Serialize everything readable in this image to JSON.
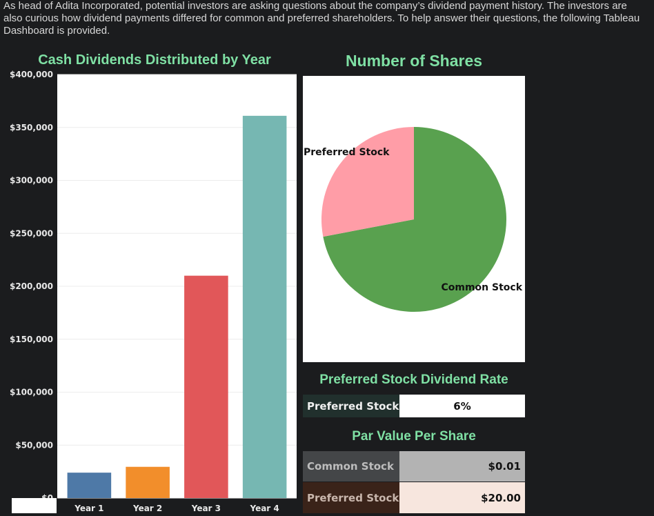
{
  "intro_text": "As head of Adita Incorporated, potential investors are asking questions about the company’s dividend payment history. The investors are also curious how dividend payments differed for common and preferred shareholders. To help answer their questions, the following Tableau Dashboard is provided.",
  "chart_data": [
    {
      "type": "bar",
      "title": "Cash Dividends Distributed by Year",
      "categories": [
        "Year 1",
        "Year 2",
        "Year 3",
        "Year 4"
      ],
      "values": [
        24000,
        29500,
        210000,
        361000
      ],
      "colors": [
        "#4e79a7",
        "#f28e2b",
        "#e15759",
        "#76b7b2"
      ],
      "yticks": [
        0,
        50000,
        100000,
        150000,
        200000,
        250000,
        300000,
        350000,
        400000
      ],
      "ytick_labels": [
        "$0",
        "$50,000",
        "$100,000",
        "$150,000",
        "$200,000",
        "$250,000",
        "$300,000",
        "$350,000",
        "$400,000"
      ],
      "ylim": [
        0,
        400000
      ],
      "xlabel": "",
      "ylabel": ""
    },
    {
      "type": "pie",
      "title": "Number of Shares",
      "labels": [
        "Common Stock",
        "Preferred Stock"
      ],
      "values": [
        72,
        28
      ],
      "colors": [
        "#59a14f",
        "#ff9da7"
      ]
    }
  ],
  "dividend_rate": {
    "title": "Preferred Stock Dividend Rate",
    "label": "Preferred Stock",
    "value": "6%"
  },
  "par_value": {
    "title": "Par Value Per Share",
    "rows": [
      {
        "label": "Common Stock",
        "value": "$0.01"
      },
      {
        "label": "Preferred Stock",
        "value": "$20.00"
      }
    ]
  }
}
